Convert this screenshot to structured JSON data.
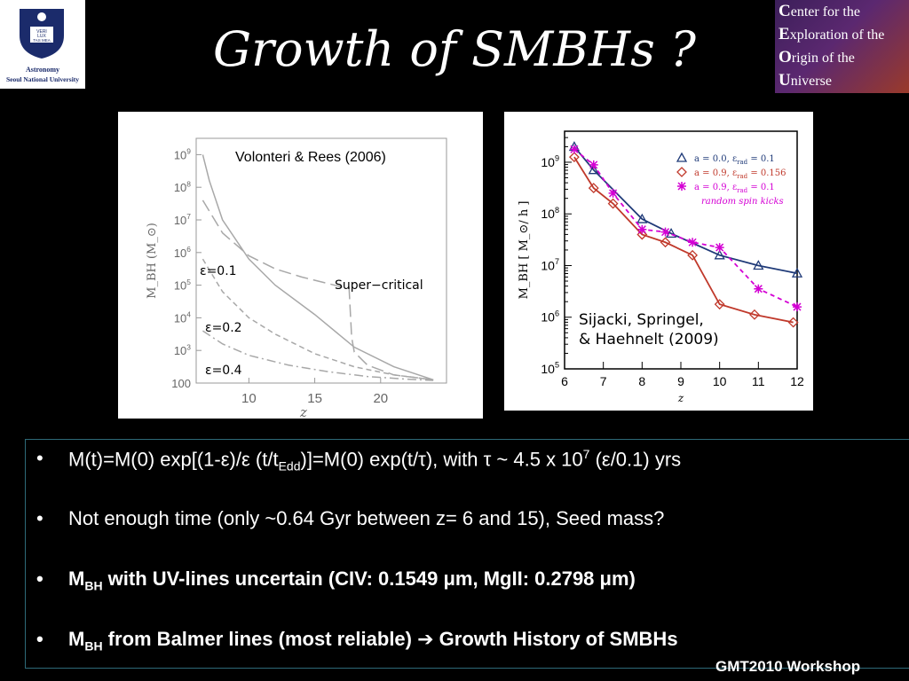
{
  "slide": {
    "title": "Growth of SMBHs ?",
    "footer": "GMT2010 Workshop"
  },
  "logo_left": {
    "line1": "Astronomy",
    "line2": "Seoul National University",
    "crest_text": [
      "VERI",
      "LUX",
      "TAS MEA"
    ]
  },
  "logo_right": {
    "lines": [
      {
        "initial": "C",
        "rest": "enter for the"
      },
      {
        "initial": "E",
        "rest": "xploration of the"
      },
      {
        "initial": "O",
        "rest": "rigin of the"
      },
      {
        "initial": "U",
        "rest": "niverse"
      }
    ]
  },
  "bullets": {
    "b1": {
      "pre": "M(t)=M(0) exp[(1-ε)/ε (t/t",
      "sub": "Edd",
      "mid": ")]=M(0) exp(t/τ), with τ ~ 4.5 x 10",
      "sup": "7",
      "post": " (ε/0.1) yrs"
    },
    "b2": {
      "text": "Not enough time (only ~0.64 Gyr between z= 6 and 15), Seed mass?"
    },
    "b3": {
      "pre": "M",
      "sub": "BH",
      "post": " with UV-lines uncertain (CIV: 0.1549 μm, MgII: 0.2798 μm)"
    },
    "b4": {
      "pre": "M",
      "sub": "BH",
      "post1": " from Balmer lines (most reliable) ",
      "arrow": "➔",
      "post2": " Growth History of SMBHs"
    }
  },
  "chart_data": [
    {
      "type": "line",
      "annotation": "Volonteri & Rees (2006)",
      "xlabel": "z",
      "ylabel": "M_BH (M_⊙)",
      "xlim": [
        6,
        25
      ],
      "ylim_log10": [
        2,
        9.5
      ],
      "yscale": "log",
      "x_ticks": [
        "10",
        "15",
        "20"
      ],
      "y_ticks": [
        "100",
        "10^3",
        "10^4",
        "10^5",
        "10^6",
        "10^7",
        "10^8",
        "10^9"
      ],
      "labels": [
        "ε=0.1",
        "ε=0.2",
        "ε=0.4",
        "Super−critical"
      ],
      "series": [
        {
          "style": "solid",
          "color": "#a8a8a8",
          "x": [
            6.5,
            7,
            8,
            10,
            12,
            15,
            18,
            21,
            24
          ],
          "log10y": [
            9.0,
            8.2,
            7.0,
            5.8,
            5.0,
            4.1,
            3.1,
            2.5,
            2.1
          ]
        },
        {
          "style": "long-dash",
          "color": "#a8a8a8",
          "x": [
            6.5,
            8,
            10,
            12,
            14,
            16,
            17,
            17.6
          ],
          "log10y": [
            7.6,
            6.6,
            5.9,
            5.5,
            5.25,
            5.05,
            4.95,
            4.95
          ]
        },
        {
          "style": "long-dash",
          "color": "#a8a8a8",
          "x": [
            17.6,
            17.8,
            18,
            19,
            21,
            24
          ],
          "log10y": [
            4.95,
            3.4,
            2.95,
            2.55,
            2.25,
            2.1
          ]
        },
        {
          "style": "short-dash",
          "color": "#a8a8a8",
          "x": [
            6.5,
            8,
            10,
            12,
            15,
            18,
            21,
            24
          ],
          "log10y": [
            5.8,
            4.8,
            4.0,
            3.5,
            2.9,
            2.5,
            2.25,
            2.1
          ]
        },
        {
          "style": "dash-dot",
          "color": "#a8a8a8",
          "x": [
            6.5,
            8,
            10,
            13,
            16,
            19,
            22,
            24
          ],
          "log10y": [
            3.6,
            3.2,
            2.85,
            2.55,
            2.35,
            2.2,
            2.12,
            2.08
          ]
        }
      ]
    },
    {
      "type": "line",
      "annotation": "Sijacki, Springel, & Haehnelt (2009)",
      "xlabel": "z",
      "ylabel": "M_BH [ M_⊙/ h ]",
      "xlim": [
        6,
        12
      ],
      "ylim_log10": [
        5,
        9.6
      ],
      "yscale": "log",
      "x_ticks": [
        "6",
        "7",
        "8",
        "9",
        "10",
        "11",
        "12"
      ],
      "y_ticks": [
        "10^5",
        "10^6",
        "10^7",
        "10^8",
        "10^9"
      ],
      "legend_position": "top-right",
      "legend_note": "random spin kicks",
      "series": [
        {
          "name": "a = 0.0, ε_rad = 0.1",
          "marker": "triangle",
          "line_color": "#1f3a78",
          "marker_color": "#1f3a78",
          "x": [
            6.25,
            6.75,
            8,
            8.75,
            10,
            11,
            12
          ],
          "log10y": [
            9.3,
            8.85,
            7.9,
            7.62,
            7.2,
            7.0,
            6.85
          ]
        },
        {
          "name": "a = 0.9, ε_rad = 0.156",
          "marker": "diamond",
          "line_color": "#c0392b",
          "marker_color": "#c0392b",
          "x": [
            6.25,
            6.75,
            7.25,
            8,
            8.6,
            9.3,
            10,
            10.9,
            11.9
          ],
          "log10y": [
            9.1,
            8.5,
            8.2,
            7.6,
            7.45,
            7.2,
            6.25,
            6.05,
            5.9
          ]
        },
        {
          "name": "a = 0.9, ε_rad = 0.1",
          "marker": "star",
          "line_color": "#d400d4",
          "marker_color": "#d400d4",
          "dashed": true,
          "x": [
            6.25,
            6.75,
            7.25,
            8,
            8.6,
            9.3,
            10,
            11,
            12
          ],
          "log10y": [
            9.25,
            8.95,
            8.4,
            7.7,
            7.65,
            7.45,
            7.35,
            6.55,
            6.2
          ]
        }
      ]
    }
  ]
}
